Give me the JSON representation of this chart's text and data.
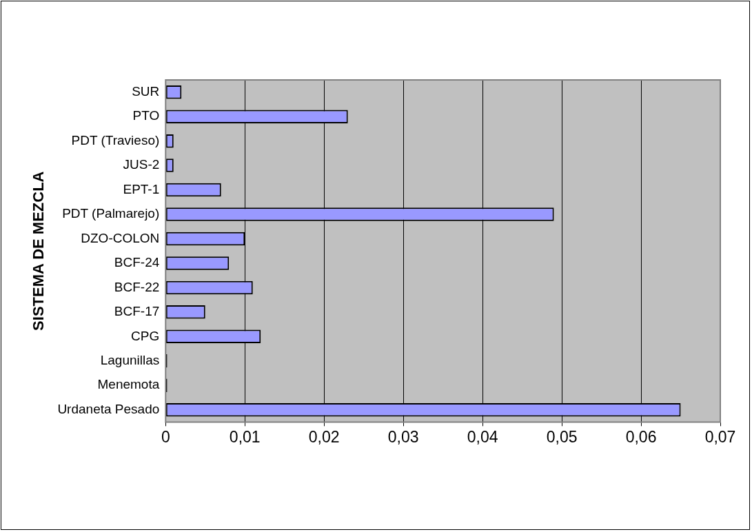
{
  "chart_data": {
    "type": "bar",
    "orientation": "horizontal",
    "ylabel": "SISTEMA DE MEZCLA",
    "categories": [
      "SUR",
      "PTO",
      "PDT (Travieso)",
      "JUS-2",
      "EPT-1",
      "PDT (Palmarejo)",
      "DZO-COLON",
      "BCF-24",
      "BCF-22",
      "BCF-17",
      "CPG",
      "Lagunillas",
      "Menemota",
      "Urdaneta Pesado"
    ],
    "values": [
      0.002,
      0.023,
      0.001,
      0.001,
      0.007,
      0.049,
      0.01,
      0.008,
      0.011,
      0.005,
      0.012,
      0.0002,
      0.0002,
      0.065
    ],
    "colors": [
      "#9999ff",
      "#9999ff",
      "#9999ff",
      "#9999ff",
      "#9999ff",
      "#9999ff",
      "#9999ff",
      "#9999ff",
      "#9999ff",
      "#9999ff",
      "#9999ff",
      "#000000",
      "#000000",
      "#9999ff"
    ],
    "xlim": [
      0,
      0.07
    ],
    "xticks": [
      0,
      {
        "value": 0.01,
        "label": "0,01"
      },
      {
        "value": 0.02,
        "label": "0,02"
      },
      {
        "value": 0.03,
        "label": "0,03"
      },
      {
        "value": 0.04,
        "label": "0,04"
      },
      {
        "value": 0.05,
        "label": "0,05"
      },
      {
        "value": 0.06,
        "label": "0,06"
      },
      {
        "value": 0.07,
        "label": "0,07"
      }
    ],
    "grid": "x",
    "legend": false
  }
}
